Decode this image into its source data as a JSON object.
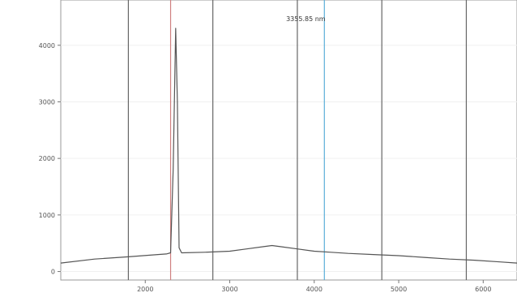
{
  "chart_data": {
    "type": "line",
    "title": "",
    "xlabel": "",
    "ylabel": "",
    "xlim": [
      1000,
      6400
    ],
    "ylim": [
      -150,
      4800
    ],
    "grid": true,
    "x_ticks": [
      2000,
      3000,
      4000,
      5000,
      6000
    ],
    "x_tick_labels": [
      "2000",
      "3000",
      "4000",
      "5000",
      "6000"
    ],
    "y_ticks": [
      0,
      1000,
      2000,
      3000,
      4000
    ],
    "y_tick_labels": [
      "0",
      "1000",
      "2000",
      "3000",
      "4000"
    ],
    "series": [
      {
        "color": "#555555",
        "x": [
          1000,
          1400,
          1800,
          2150,
          2250,
          2300,
          2330,
          2360,
          2380,
          2400,
          2430,
          2700,
          3000,
          3200,
          3400,
          3500,
          3600,
          3800,
          4000,
          4200,
          4400,
          4700,
          5000,
          5300,
          5600,
          5900,
          6200,
          6400
        ],
        "y": [
          150,
          220,
          260,
          300,
          310,
          330,
          1800,
          4300,
          3000,
          420,
          330,
          340,
          360,
          400,
          440,
          460,
          440,
          400,
          360,
          340,
          320,
          300,
          280,
          250,
          220,
          200,
          170,
          150
        ]
      }
    ],
    "vlines": [
      {
        "x": 1800,
        "color": "#666666"
      },
      {
        "x": 2300,
        "color": "#d08080"
      },
      {
        "x": 2800,
        "color": "#666666"
      },
      {
        "x": 3800,
        "color": "#666666"
      },
      {
        "x": 4120,
        "color": "#5aaed8"
      },
      {
        "x": 4800,
        "color": "#666666"
      },
      {
        "x": 5800,
        "color": "#666666"
      }
    ],
    "annotations": [
      {
        "text": "3355.85 nm",
        "x": 3900,
        "y": 4430
      }
    ]
  }
}
